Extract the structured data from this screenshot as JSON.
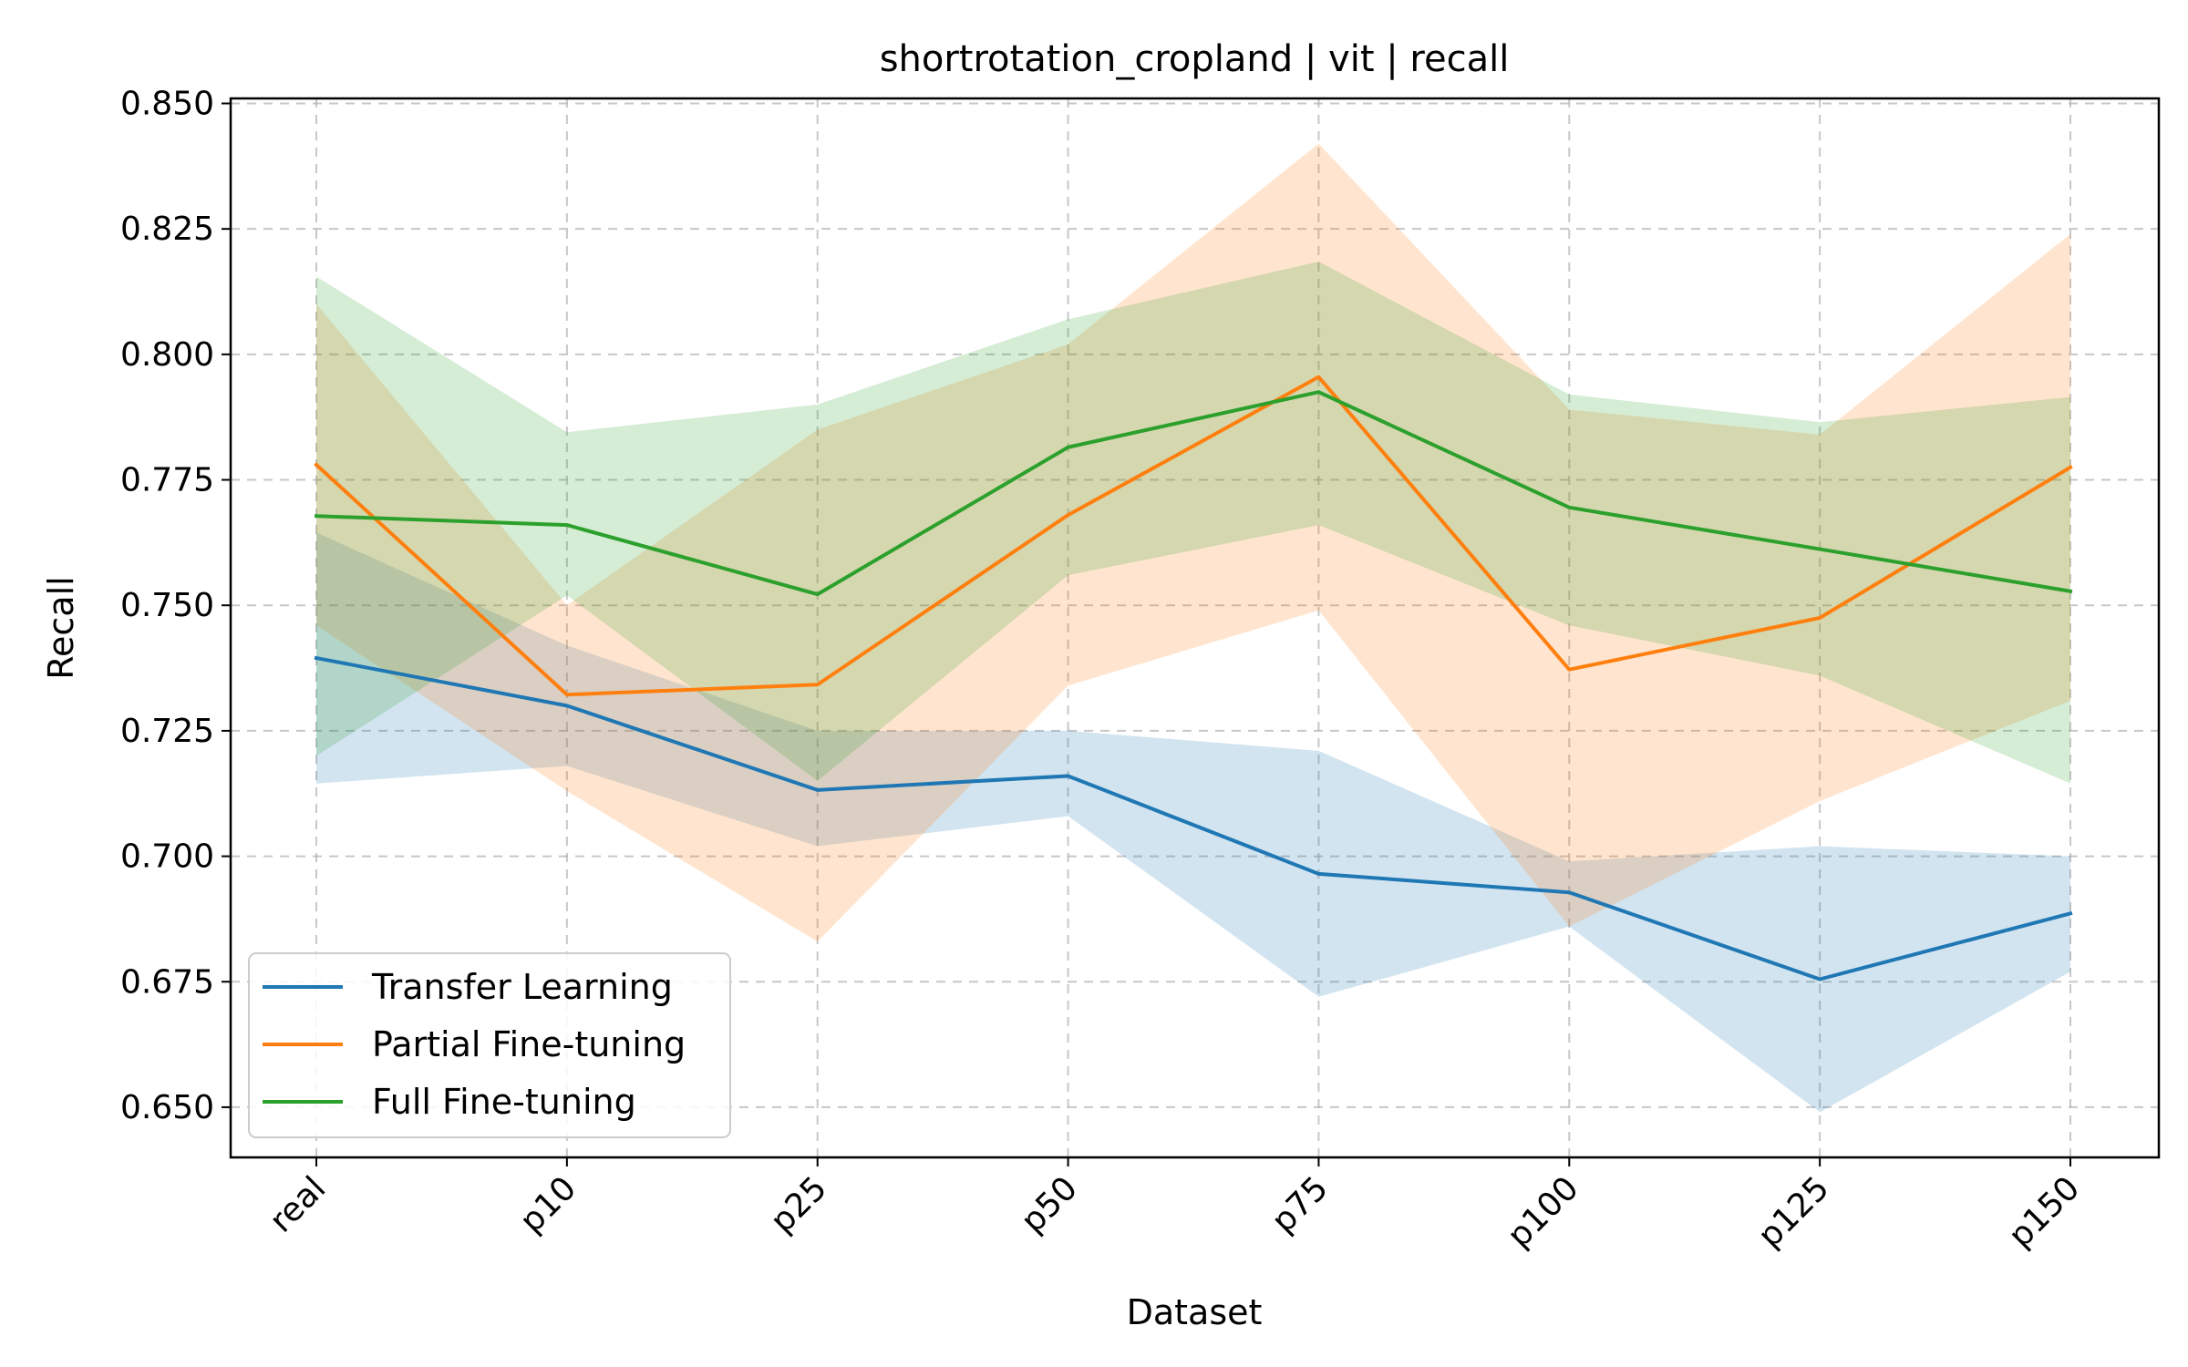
{
  "chart_data": {
    "type": "line",
    "title": "shortrotation_cropland | vit | recall",
    "xlabel": "Dataset",
    "ylabel": "Recall",
    "categories": [
      "real",
      "p10",
      "p25",
      "p50",
      "p75",
      "p100",
      "p125",
      "p150"
    ],
    "ylim": [
      0.64,
      0.851
    ],
    "yticks": [
      "0.650",
      "0.675",
      "0.700",
      "0.725",
      "0.750",
      "0.775",
      "0.800",
      "0.825",
      "0.850"
    ],
    "grid": true,
    "legend_position": "lower-left",
    "series": [
      {
        "name": "Transfer Learning",
        "color": "#1f77b4",
        "values": [
          0.7395,
          0.73,
          0.7132,
          0.716,
          0.6965,
          0.6928,
          0.6755,
          0.6886
        ],
        "lower": [
          0.7145,
          0.718,
          0.702,
          0.708,
          0.672,
          0.686,
          0.649,
          0.677
        ],
        "upper": [
          0.7645,
          0.742,
          0.725,
          0.725,
          0.721,
          0.699,
          0.702,
          0.7
        ]
      },
      {
        "name": "Partial Fine-tuning",
        "color": "#ff7f0e",
        "values": [
          0.778,
          0.7322,
          0.7342,
          0.768,
          0.7955,
          0.7372,
          0.7475,
          0.7775
        ],
        "lower": [
          0.746,
          0.713,
          0.683,
          0.734,
          0.749,
          0.686,
          0.711,
          0.731
        ],
        "upper": [
          0.81,
          0.75,
          0.785,
          0.802,
          0.842,
          0.789,
          0.784,
          0.824
        ]
      },
      {
        "name": "Full Fine-tuning",
        "color": "#2ca02c",
        "values": [
          0.7678,
          0.766,
          0.7522,
          0.7815,
          0.7925,
          0.7695,
          0.7612,
          0.7528
        ],
        "lower": [
          0.72,
          0.752,
          0.715,
          0.756,
          0.766,
          0.746,
          0.736,
          0.7145
        ],
        "upper": [
          0.8155,
          0.7845,
          0.79,
          0.807,
          0.8185,
          0.792,
          0.7865,
          0.7915
        ]
      }
    ]
  }
}
